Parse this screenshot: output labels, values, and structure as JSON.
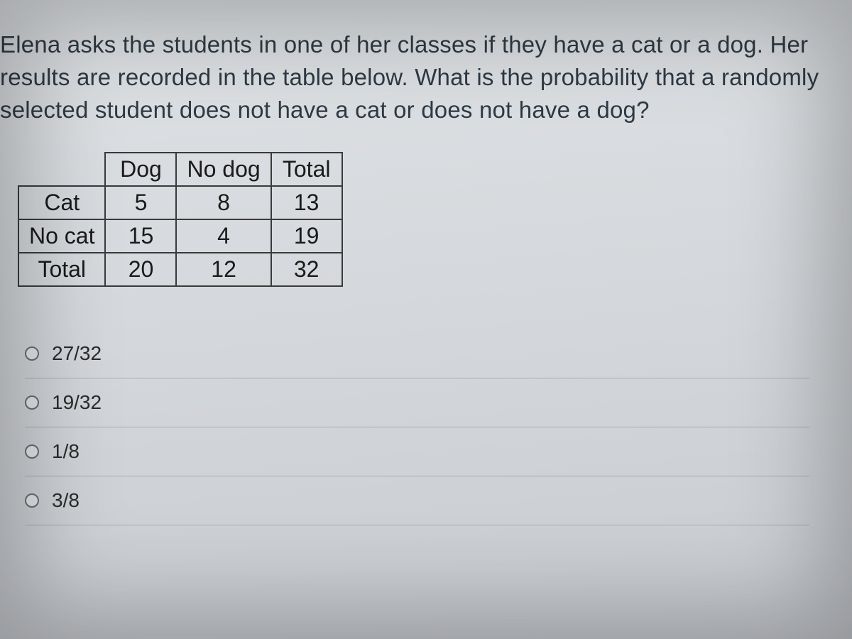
{
  "question_text": "Elena asks the students in one of her classes if they have a cat or a dog. Her results are recorded in the table below. What is the probability that a randomly selected student does not have a cat or does not have a dog?",
  "table": {
    "columns": [
      "",
      "Dog",
      "No dog",
      "Total"
    ],
    "rows": [
      [
        "Cat",
        "5",
        "8",
        "13"
      ],
      [
        "No cat",
        "15",
        "4",
        "19"
      ],
      [
        "Total",
        "20",
        "12",
        "32"
      ]
    ],
    "border_color": "#3a3a3a",
    "font_size": 32,
    "cell_min_width": 100
  },
  "options": [
    {
      "label": "27/32"
    },
    {
      "label": "19/32"
    },
    {
      "label": "1/8"
    },
    {
      "label": "3/8"
    }
  ],
  "colors": {
    "background_top": "#dfe2e5",
    "background_bottom": "#c8cbd0",
    "text": "#2f3a44",
    "divider": "#a8abb0",
    "radio_border": "#6b6e73"
  },
  "typography": {
    "question_fontsize": 33,
    "table_fontsize": 32,
    "option_fontsize": 28,
    "font_family": "Arial"
  }
}
